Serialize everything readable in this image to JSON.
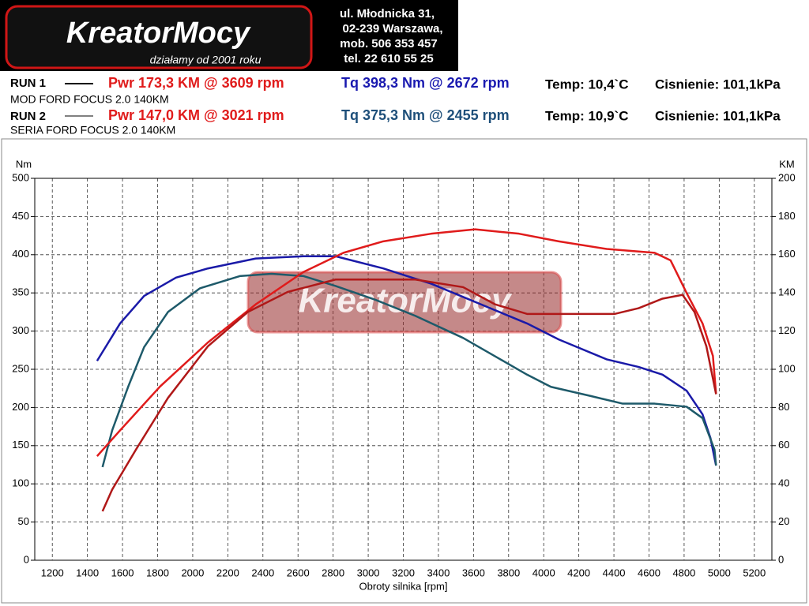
{
  "header": {
    "logo": "KreatorMocy",
    "slogan": "działamy od 2001 roku",
    "address": [
      "ul. Młodnicka 31,",
      "02-239  Warszawa,",
      "mob.  506 353 457",
      "tel.  22 610 55 25"
    ]
  },
  "runs": [
    {
      "label": "RUN 1",
      "power": "Pwr  173,3 KM @ 3609 rpm",
      "torque": "Tq 398,3 Nm @ 2672 rpm",
      "temp": "Temp: 10,4`C",
      "pressure": "Cisnienie: 101,1kPa",
      "vehicle": "MOD FORD FOCUS 2.0 140KM"
    },
    {
      "label": "RUN 2",
      "power": "Pwr  147,0 KM @ 3021 rpm",
      "torque": "Tq 375,3 Nm @ 2455 rpm",
      "temp": "Temp: 10,9`C",
      "pressure": "Cisnienie: 101,1kPa",
      "vehicle": "SERIA FORD FOCUS 2.0 140KM"
    }
  ],
  "watermark": "KreatorMocy",
  "chart_data": {
    "type": "line",
    "xlabel": "Obroty silnika [rpm]",
    "ylabel": "Nm",
    "y2label": "KM",
    "xlim": [
      1100,
      5300
    ],
    "xticks": [
      1200,
      1400,
      1600,
      1800,
      2000,
      2200,
      2400,
      2600,
      2800,
      3000,
      3200,
      3400,
      3600,
      3800,
      4000,
      4200,
      4400,
      4600,
      4800,
      5000,
      5200
    ],
    "ylim": [
      0,
      500
    ],
    "yticks": [
      0,
      50,
      100,
      150,
      200,
      250,
      300,
      350,
      400,
      450,
      500
    ],
    "y2lim": [
      0,
      200
    ],
    "y2ticks": [
      0,
      20,
      40,
      60,
      80,
      100,
      120,
      140,
      160,
      180,
      200
    ],
    "grid": true,
    "series": [
      {
        "color": "#1a1aa8",
        "axis": "y",
        "x": [
          1455,
          1586,
          1723,
          1905,
          2086,
          2359,
          2632,
          2814,
          3086,
          3359,
          3632,
          3905,
          4086,
          4359,
          4541,
          4677,
          4814,
          4905,
          4950,
          4982
        ],
        "values": [
          261,
          310,
          346,
          370,
          382,
          395,
          398,
          398,
          382,
          362,
          336,
          310,
          289,
          263,
          253,
          243,
          222,
          191,
          160,
          124
        ]
      },
      {
        "color": "#1e5a6a",
        "axis": "y",
        "x": [
          1486,
          1541,
          1632,
          1723,
          1859,
          2041,
          2268,
          2450,
          2632,
          2814,
          3041,
          3268,
          3541,
          3723,
          3905,
          4041,
          4268,
          4450,
          4632,
          4814,
          4905,
          4973,
          4982
        ],
        "values": [
          122,
          170,
          227,
          279,
          325,
          356,
          372,
          375,
          372,
          359,
          341,
          320,
          291,
          267,
          243,
          227,
          215,
          205,
          205,
          201,
          186,
          145,
          124
        ]
      },
      {
        "color": "#e01b1b",
        "axis": "y2",
        "x": [
          1455,
          1586,
          1814,
          2086,
          2359,
          2632,
          2859,
          3086,
          3359,
          3609,
          3859,
          4086,
          4359,
          4632,
          4723,
          4814,
          4905,
          4964,
          4982
        ],
        "values": [
          54.5,
          68,
          91,
          114,
          134,
          151,
          161,
          167,
          171,
          173.3,
          171,
          167,
          163,
          161,
          157,
          140,
          124,
          107,
          87
        ]
      },
      {
        "color": "#b01818",
        "axis": "y2",
        "x": [
          1486,
          1541,
          1677,
          1859,
          2086,
          2314,
          2541,
          2814,
          3021,
          3268,
          3541,
          3723,
          3905,
          4177,
          4405,
          4541,
          4677,
          4791,
          4859,
          4927,
          4982
        ],
        "values": [
          25.6,
          37,
          58,
          85,
          112,
          130,
          140.5,
          147,
          147,
          147,
          143,
          134,
          129,
          129,
          129,
          132,
          137,
          139,
          130,
          112,
          87
        ]
      }
    ]
  }
}
